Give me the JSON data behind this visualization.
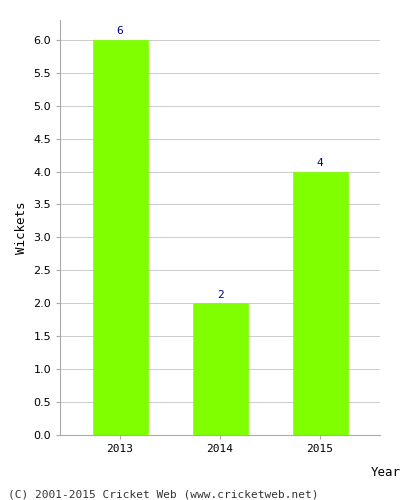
{
  "categories": [
    "2013",
    "2014",
    "2015"
  ],
  "values": [
    6,
    2,
    4
  ],
  "bar_color": "#7FFF00",
  "bar_edge_color": "#7FFF00",
  "label_color": "#00008B",
  "label_fontsize": 8,
  "xlabel": "Year",
  "ylabel": "Wickets",
  "ylim": [
    0,
    6.3
  ],
  "yticks": [
    0.0,
    0.5,
    1.0,
    1.5,
    2.0,
    2.5,
    3.0,
    3.5,
    4.0,
    4.5,
    5.0,
    5.5,
    6.0
  ],
  "footnote": "(C) 2001-2015 Cricket Web (www.cricketweb.net)",
  "footnote_fontsize": 8,
  "axis_label_fontsize": 9,
  "tick_fontsize": 8,
  "background_color": "#ffffff",
  "grid_color": "#cccccc",
  "bar_width": 0.55
}
